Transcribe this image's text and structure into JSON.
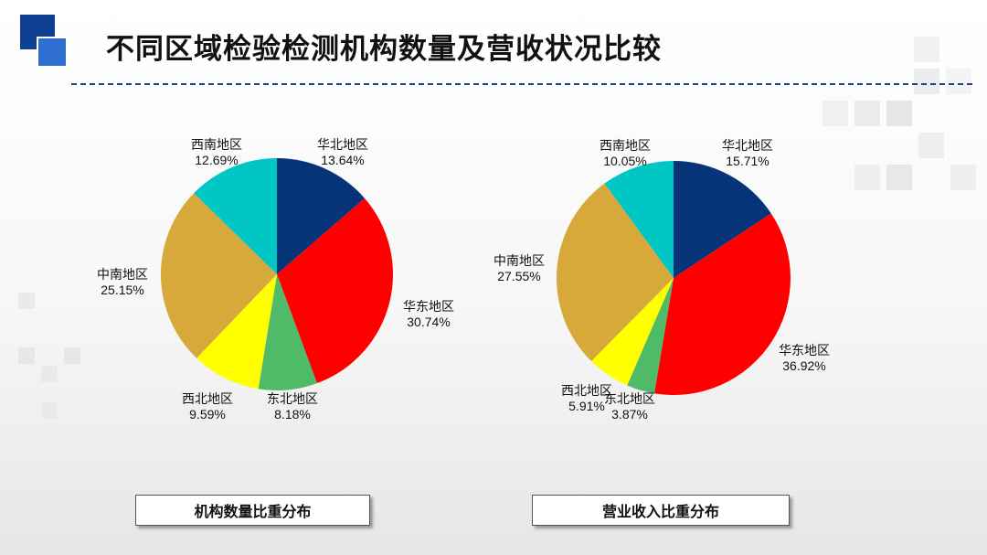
{
  "page": {
    "title": "不同区域检验检测机构数量及营收状况比较"
  },
  "chart_data": [
    {
      "type": "pie",
      "caption": "机构数量比重分布",
      "slices": [
        {
          "label": "华北地区",
          "value": 13.64,
          "display": "13.64%",
          "color": "#073378"
        },
        {
          "label": "华东地区",
          "value": 30.74,
          "display": "30.74%",
          "color": "#ff0000"
        },
        {
          "label": "东北地区",
          "value": 8.18,
          "display": "8.18%",
          "color": "#4fba68"
        },
        {
          "label": "西北地区",
          "value": 9.59,
          "display": "9.59%",
          "color": "#ffff00"
        },
        {
          "label": "中南地区",
          "value": 25.15,
          "display": "25.15%",
          "color": "#d7a83a"
        },
        {
          "label": "西南地区",
          "value": 12.69,
          "display": "12.69%",
          "color": "#00c6c4"
        }
      ]
    },
    {
      "type": "pie",
      "caption": "营业收入比重分布",
      "slices": [
        {
          "label": "华北地区",
          "value": 15.71,
          "display": "15.71%",
          "color": "#073378"
        },
        {
          "label": "华东地区",
          "value": 36.92,
          "display": "36.92%",
          "color": "#ff0000"
        },
        {
          "label": "东北地区",
          "value": 3.87,
          "display": "3.87%",
          "color": "#4fba68"
        },
        {
          "label": "西北地区",
          "value": 5.91,
          "display": "5.91%",
          "color": "#ffff00"
        },
        {
          "label": "中南地区",
          "value": 27.55,
          "display": "27.55%",
          "color": "#d7a83a"
        },
        {
          "label": "西南地区",
          "value": 10.05,
          "display": "10.05%",
          "color": "#00c6c4"
        }
      ]
    }
  ]
}
